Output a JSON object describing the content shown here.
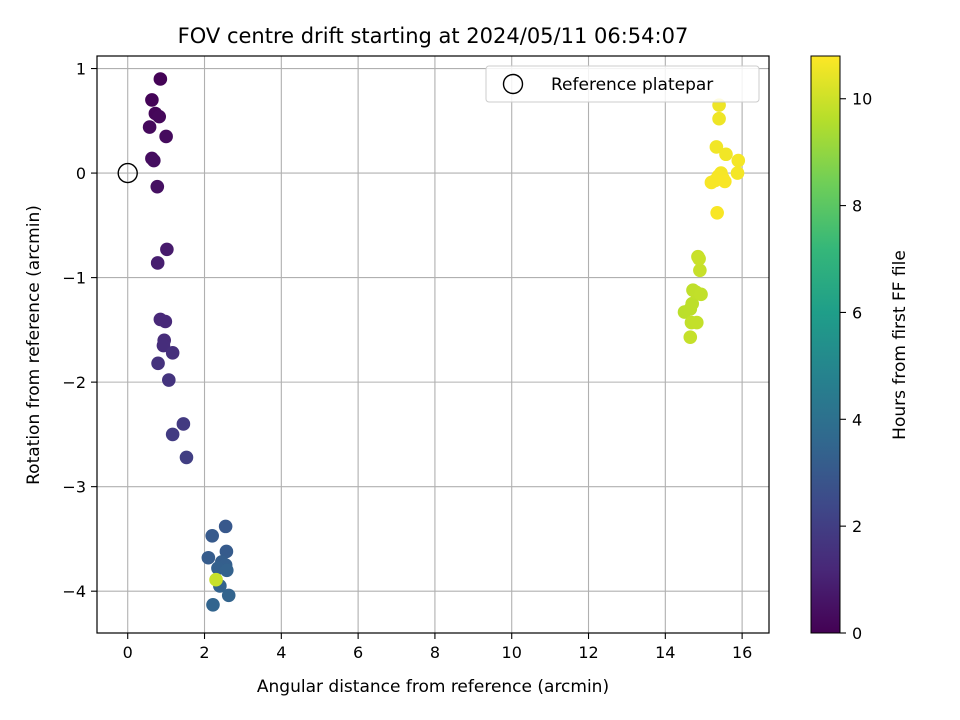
{
  "chart_data": {
    "type": "scatter",
    "title": "FOV centre drift starting at 2024/05/11 06:54:07",
    "xlabel": "Angular distance from reference (arcmin)",
    "ylabel": "Rotation from reference (arcmin)",
    "xlim": [
      -0.8,
      16.7
    ],
    "ylim": [
      -4.4,
      1.12
    ],
    "xticks": [
      0,
      2,
      4,
      6,
      8,
      10,
      12,
      14,
      16
    ],
    "yticks": [
      1,
      0,
      -1,
      -2,
      -3,
      -4
    ],
    "grid": true,
    "legend": {
      "placement": "top-right",
      "entries": [
        {
          "label": "Reference platepar",
          "marker": "open-circle",
          "x": 0,
          "y": 0
        }
      ]
    },
    "colorbar": {
      "label": "Hours from first FF file",
      "range": [
        0,
        10.8
      ],
      "ticks": [
        0,
        2,
        4,
        6,
        8,
        10
      ],
      "colormap": "viridis",
      "stops": [
        "#440154",
        "#482878",
        "#3e4989",
        "#31688e",
        "#26828e",
        "#1f9e89",
        "#35b779",
        "#6ece58",
        "#b5de2b",
        "#fde725"
      ]
    },
    "series": [
      {
        "points": [
          {
            "x": 0.85,
            "y": 0.9,
            "t": 0.05
          },
          {
            "x": 0.63,
            "y": 0.7,
            "t": 0.1
          },
          {
            "x": 0.72,
            "y": 0.57,
            "t": 0.15
          },
          {
            "x": 0.82,
            "y": 0.54,
            "t": 0.2
          },
          {
            "x": 0.57,
            "y": 0.44,
            "t": 0.25
          },
          {
            "x": 1.0,
            "y": 0.35,
            "t": 0.3
          },
          {
            "x": 0.63,
            "y": 0.14,
            "t": 0.35
          },
          {
            "x": 0.68,
            "y": 0.12,
            "t": 0.4
          },
          {
            "x": 0.77,
            "y": -0.13,
            "t": 0.45
          },
          {
            "x": 1.02,
            "y": -0.73,
            "t": 0.8
          },
          {
            "x": 0.78,
            "y": -0.86,
            "t": 0.9
          },
          {
            "x": 0.85,
            "y": -1.4,
            "t": 1.2
          },
          {
            "x": 0.98,
            "y": -1.42,
            "t": 1.25
          },
          {
            "x": 0.95,
            "y": -1.6,
            "t": 1.35
          },
          {
            "x": 0.93,
            "y": -1.65,
            "t": 1.4
          },
          {
            "x": 1.17,
            "y": -1.72,
            "t": 1.5
          },
          {
            "x": 0.79,
            "y": -1.82,
            "t": 1.55
          },
          {
            "x": 1.07,
            "y": -1.98,
            "t": 1.65
          },
          {
            "x": 1.45,
            "y": -2.4,
            "t": 1.85
          },
          {
            "x": 1.17,
            "y": -2.5,
            "t": 1.9
          },
          {
            "x": 1.53,
            "y": -2.72,
            "t": 2.0
          },
          {
            "x": 2.55,
            "y": -3.38,
            "t": 3.0
          },
          {
            "x": 2.2,
            "y": -3.47,
            "t": 3.05
          },
          {
            "x": 2.57,
            "y": -3.62,
            "t": 3.1
          },
          {
            "x": 2.1,
            "y": -3.68,
            "t": 3.15
          },
          {
            "x": 2.45,
            "y": -3.72,
            "t": 3.2
          },
          {
            "x": 2.55,
            "y": -3.75,
            "t": 3.25
          },
          {
            "x": 2.35,
            "y": -3.78,
            "t": 3.3
          },
          {
            "x": 2.58,
            "y": -3.8,
            "t": 3.35
          },
          {
            "x": 2.4,
            "y": -3.95,
            "t": 3.4
          },
          {
            "x": 2.63,
            "y": -4.04,
            "t": 3.45
          },
          {
            "x": 2.22,
            "y": -4.13,
            "t": 3.5
          },
          {
            "x": 2.3,
            "y": -3.89,
            "t": 9.9
          },
          {
            "x": 14.5,
            "y": -1.33,
            "t": 9.7
          },
          {
            "x": 14.65,
            "y": -1.3,
            "t": 9.72
          },
          {
            "x": 14.7,
            "y": -1.25,
            "t": 9.74
          },
          {
            "x": 14.72,
            "y": -1.12,
            "t": 9.76
          },
          {
            "x": 14.8,
            "y": -1.14,
            "t": 9.78
          },
          {
            "x": 14.93,
            "y": -1.16,
            "t": 9.8
          },
          {
            "x": 14.68,
            "y": -1.43,
            "t": 9.82
          },
          {
            "x": 14.82,
            "y": -1.43,
            "t": 9.84
          },
          {
            "x": 14.65,
            "y": -1.57,
            "t": 9.86
          },
          {
            "x": 14.9,
            "y": -0.93,
            "t": 9.9
          },
          {
            "x": 14.85,
            "y": -0.8,
            "t": 9.92
          },
          {
            "x": 14.88,
            "y": -0.82,
            "t": 9.94
          },
          {
            "x": 15.4,
            "y": 0.65,
            "t": 10.55
          },
          {
            "x": 15.4,
            "y": 0.52,
            "t": 10.55
          },
          {
            "x": 15.33,
            "y": 0.25,
            "t": 10.6
          },
          {
            "x": 15.58,
            "y": 0.18,
            "t": 10.6
          },
          {
            "x": 15.9,
            "y": 0.12,
            "t": 10.65
          },
          {
            "x": 15.45,
            "y": 0.0,
            "t": 10.65
          },
          {
            "x": 15.88,
            "y": 0.0,
            "t": 10.65
          },
          {
            "x": 15.38,
            "y": -0.03,
            "t": 10.68
          },
          {
            "x": 15.5,
            "y": -0.05,
            "t": 10.68
          },
          {
            "x": 15.2,
            "y": -0.09,
            "t": 10.7
          },
          {
            "x": 15.3,
            "y": -0.07,
            "t": 10.7
          },
          {
            "x": 15.55,
            "y": -0.08,
            "t": 10.72
          },
          {
            "x": 15.35,
            "y": -0.38,
            "t": 10.72
          }
        ]
      }
    ]
  }
}
